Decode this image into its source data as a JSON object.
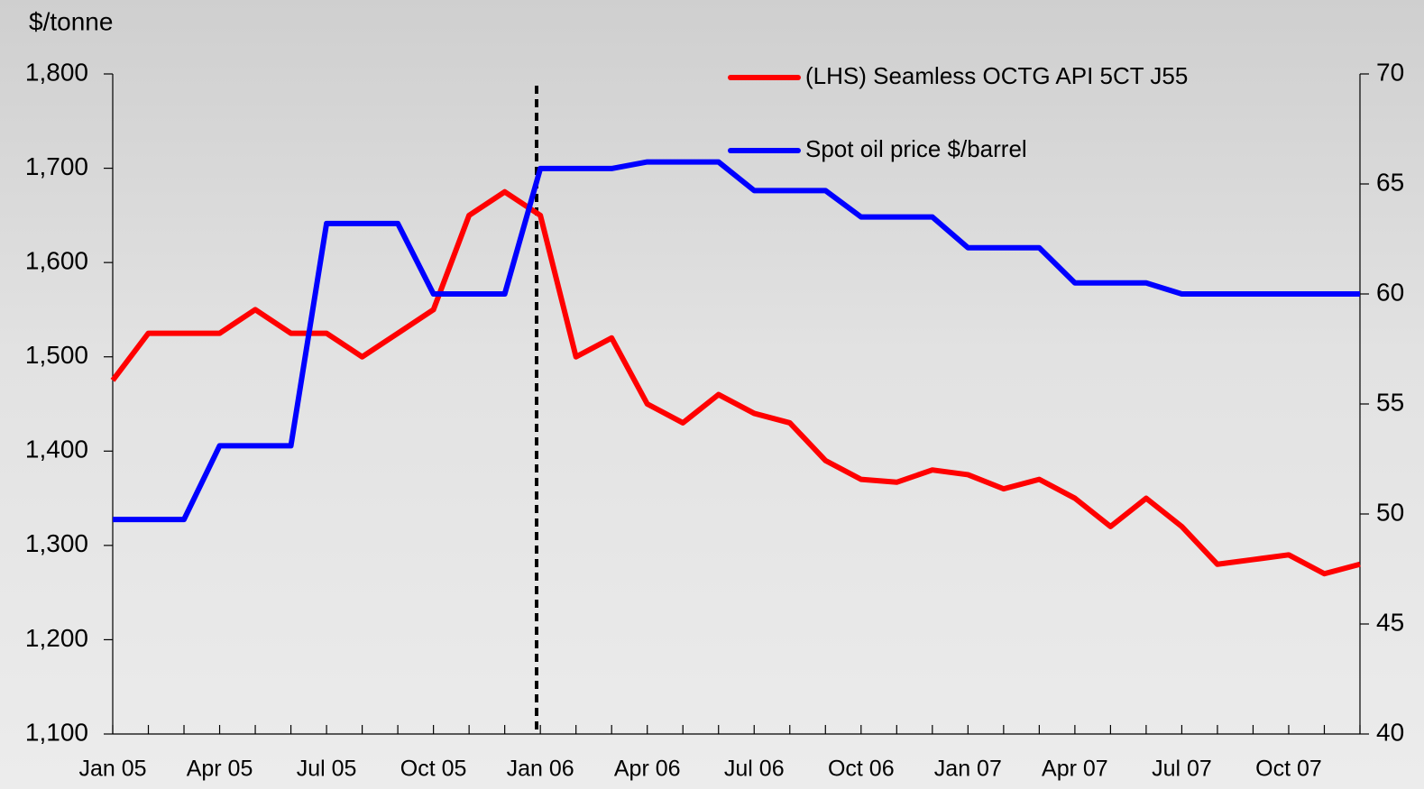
{
  "chart_data": {
    "type": "line",
    "y_label": "$/tonne",
    "categories": [
      "Jan 05",
      null,
      null,
      "Apr 05",
      null,
      null,
      "Jul 05",
      null,
      null,
      "Oct 05",
      null,
      null,
      "Jan 06",
      null,
      null,
      "Apr 06",
      null,
      null,
      "Jul 06",
      null,
      null,
      "Oct 06",
      null,
      null,
      "Jan 07",
      null,
      null,
      "Apr 07",
      null,
      null,
      "Jul 07",
      null,
      null,
      "Oct 07",
      null,
      null
    ],
    "series": [
      {
        "name": "(LHS) Seamless OCTG API 5CT J55",
        "color": "#ff0000",
        "axis": "y",
        "values": [
          1475,
          1525,
          1525,
          1525,
          1550,
          1525,
          1525,
          1500,
          1525,
          1550,
          1650,
          1675,
          1650,
          1500,
          1520,
          1450,
          1430,
          1460,
          1440,
          1430,
          1390,
          1370,
          1367,
          1380,
          1375,
          1360,
          1370,
          1350,
          1320,
          1350,
          1320,
          1280,
          1285,
          1290,
          1270,
          1280
        ]
      },
      {
        "name": "Spot oil price $/barrel",
        "color": "#0000ff",
        "axis": "y2",
        "values": [
          49.75,
          49.75,
          49.75,
          53.1,
          53.1,
          53.1,
          63.2,
          63.2,
          63.2,
          60,
          60,
          60,
          65.7,
          65.7,
          65.7,
          66,
          66,
          66,
          64.7,
          64.7,
          64.7,
          63.5,
          63.5,
          63.5,
          62.1,
          62.1,
          62.1,
          60.5,
          60.5,
          60.5,
          60,
          60,
          60,
          60,
          60,
          60
        ]
      }
    ],
    "ylim": [
      1100,
      1800
    ],
    "yticks": [
      {
        "value": 1100,
        "label": "1,100"
      },
      {
        "value": 1200,
        "label": "1,200"
      },
      {
        "value": 1300,
        "label": "1,300"
      },
      {
        "value": 1400,
        "label": "1,400"
      },
      {
        "value": 1500,
        "label": "1,500"
      },
      {
        "value": 1600,
        "label": "1,600"
      },
      {
        "value": 1700,
        "label": "1,700"
      },
      {
        "value": 1800,
        "label": "1,800"
      }
    ],
    "y2lim": [
      40,
      70
    ],
    "y2ticks": [
      40,
      45,
      50,
      55,
      60,
      65,
      70
    ]
  }
}
